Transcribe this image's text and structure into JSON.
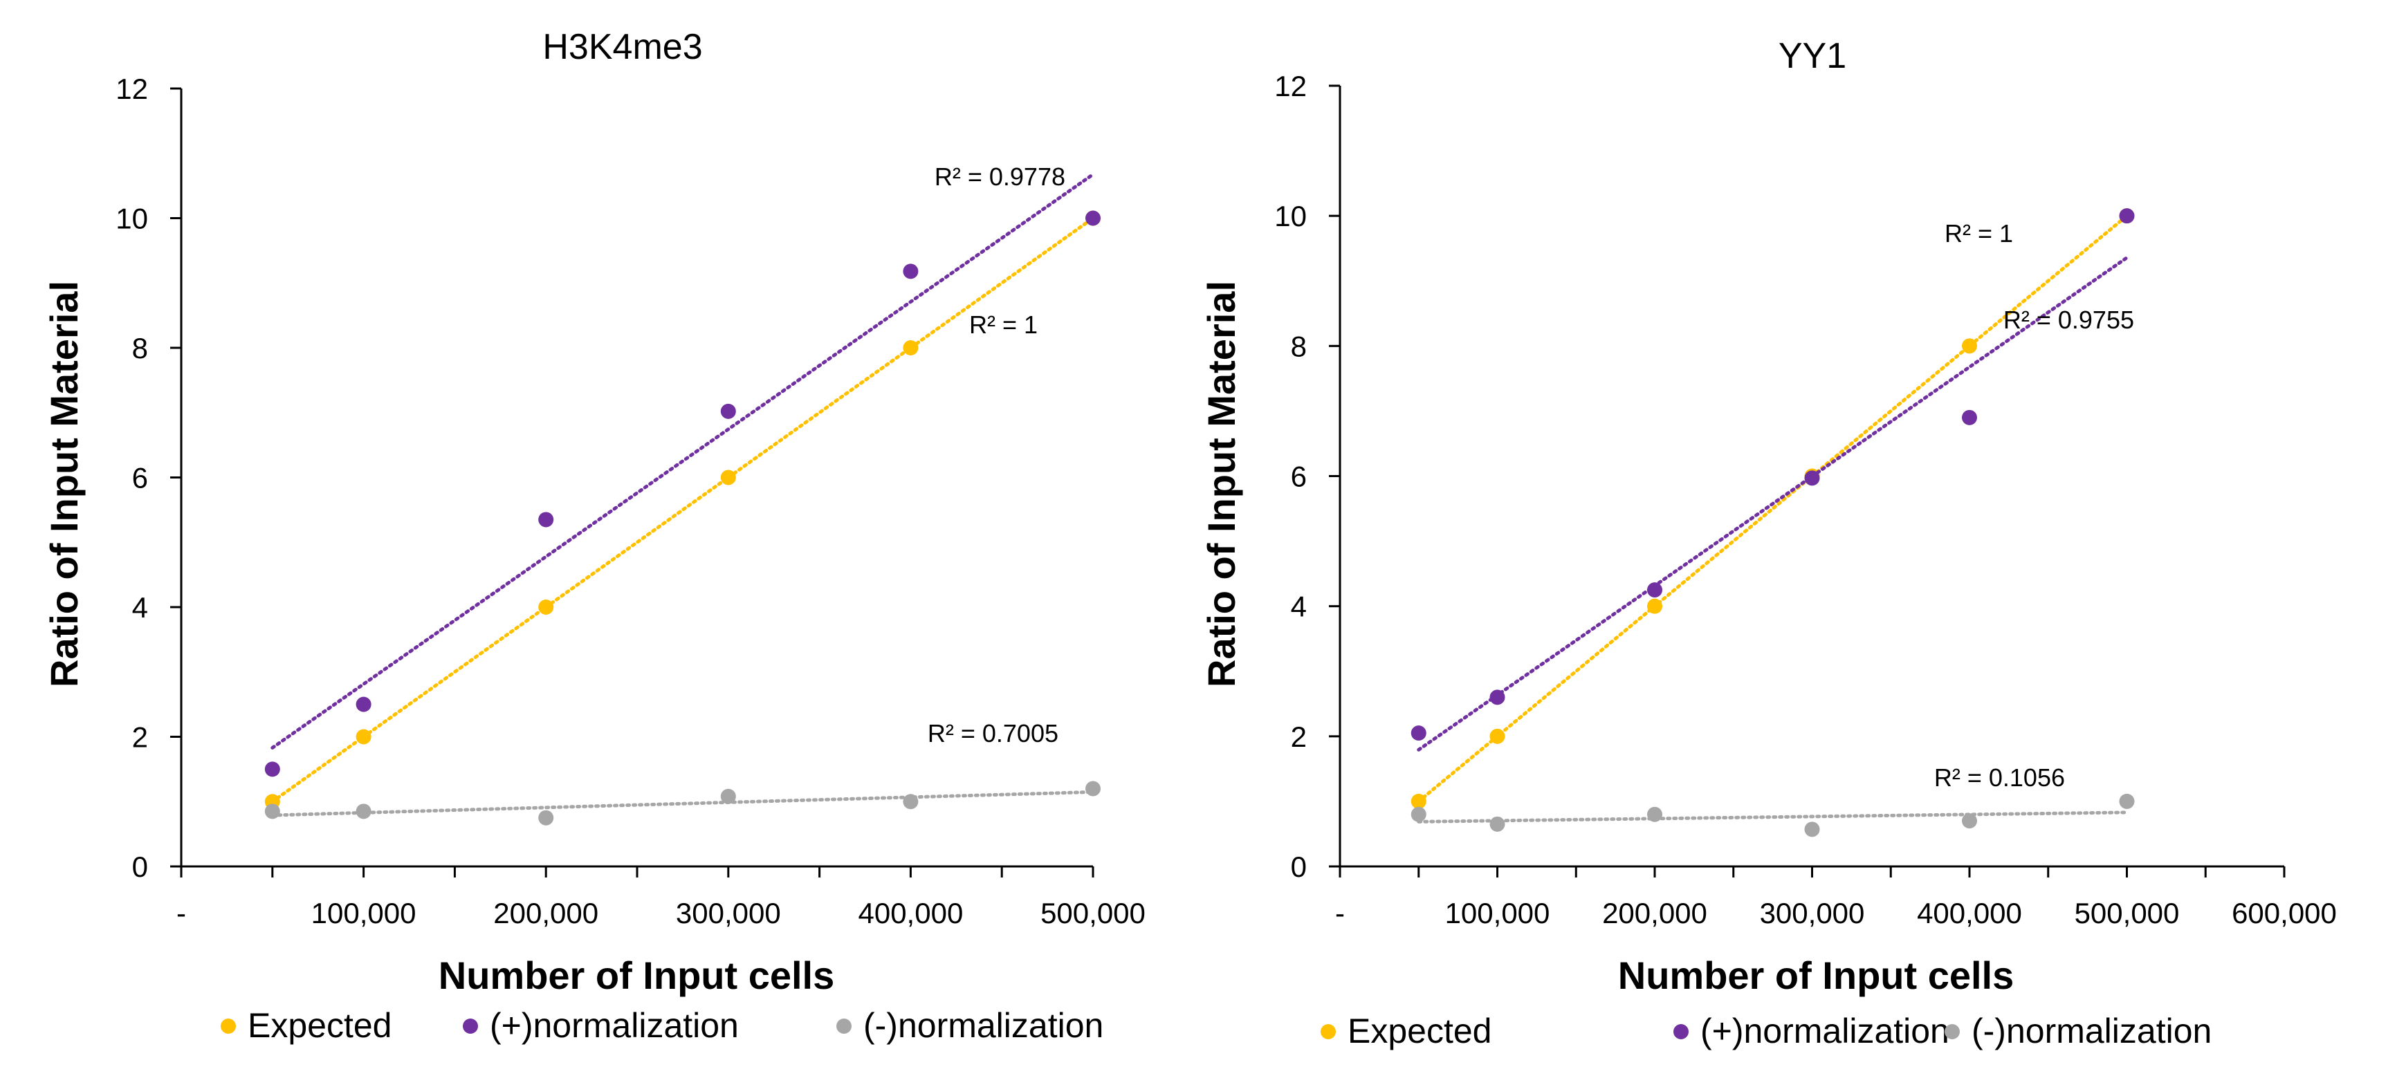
{
  "chart_data": [
    {
      "type": "scatter",
      "title": "H3K4me3",
      "xlabel": "Number of Input cells",
      "ylabel": "Ratio of Input Material",
      "xlim": [
        0,
        500000
      ],
      "ylim": [
        0,
        12
      ],
      "x_ticks": [
        0,
        50000,
        100000,
        150000,
        200000,
        250000,
        300000,
        350000,
        400000,
        450000,
        500000
      ],
      "x_tick_labels": [
        {
          "value": 0,
          "label": "-"
        },
        {
          "value": 100000,
          "label": "100,000"
        },
        {
          "value": 200000,
          "label": "200,000"
        },
        {
          "value": 300000,
          "label": "300,000"
        },
        {
          "value": 400000,
          "label": "400,000"
        },
        {
          "value": 500000,
          "label": "500,000"
        }
      ],
      "y_ticks": [
        0,
        2,
        4,
        6,
        8,
        10,
        12
      ],
      "y_tick_labels": [
        "0",
        "2",
        "4",
        "6",
        "8",
        "10",
        "12"
      ],
      "grid": false,
      "legend": {
        "position": "bottom"
      },
      "series": [
        {
          "name": "Expected",
          "color": "#FFC000",
          "x": [
            50000,
            100000,
            200000,
            300000,
            400000,
            500000
          ],
          "y": [
            1,
            2,
            4,
            6,
            8,
            10
          ],
          "trendline": {
            "type": "linear",
            "r2_label": "R² = 1"
          }
        },
        {
          "name": "(+)normalization",
          "color": "#7030A0",
          "x": [
            50000,
            100000,
            200000,
            300000,
            400000,
            500000
          ],
          "y": [
            1.5,
            2.5,
            5.35,
            7.02,
            9.18,
            10
          ],
          "trendline": {
            "type": "linear",
            "r2_label": "R² = 0.9778"
          }
        },
        {
          "name": "(-)normalization",
          "color": "#A6A6A6",
          "x": [
            50000,
            100000,
            200000,
            300000,
            400000,
            500000
          ],
          "y": [
            0.85,
            0.85,
            0.75,
            1.08,
            1.0,
            1.2
          ],
          "trendline": {
            "type": "linear",
            "r2_label": "R² = 0.7005"
          }
        }
      ]
    },
    {
      "type": "scatter",
      "title": "YY1",
      "xlabel": "Number of Input cells",
      "ylabel": "Ratio of Input Material",
      "xlim": [
        0,
        600000
      ],
      "ylim": [
        0,
        12
      ],
      "x_ticks": [
        0,
        50000,
        100000,
        150000,
        200000,
        250000,
        300000,
        350000,
        400000,
        450000,
        500000,
        550000,
        600000
      ],
      "x_tick_labels": [
        {
          "value": 0,
          "label": "-"
        },
        {
          "value": 100000,
          "label": "100,000"
        },
        {
          "value": 200000,
          "label": "200,000"
        },
        {
          "value": 300000,
          "label": "300,000"
        },
        {
          "value": 400000,
          "label": "400,000"
        },
        {
          "value": 500000,
          "label": "500,000"
        },
        {
          "value": 600000,
          "label": "600,000"
        }
      ],
      "y_ticks": [
        0,
        2,
        4,
        6,
        8,
        10,
        12
      ],
      "y_tick_labels": [
        "0",
        "2",
        "4",
        "6",
        "8",
        "10",
        "12"
      ],
      "grid": false,
      "legend": {
        "position": "bottom"
      },
      "series": [
        {
          "name": "Expected",
          "color": "#FFC000",
          "x": [
            50000,
            100000,
            200000,
            300000,
            400000,
            500000
          ],
          "y": [
            1,
            2,
            4,
            6,
            8,
            10
          ],
          "trendline": {
            "type": "linear",
            "r2_label": "R² = 1"
          }
        },
        {
          "name": "(+)normalization",
          "color": "#7030A0",
          "x": [
            50000,
            100000,
            200000,
            300000,
            400000,
            500000
          ],
          "y": [
            2.05,
            2.6,
            4.25,
            5.97,
            6.9,
            10
          ],
          "trendline": {
            "type": "linear",
            "r2_label": "R² = 0.9755"
          }
        },
        {
          "name": "(-)normalization",
          "color": "#A6A6A6",
          "x": [
            50000,
            100000,
            200000,
            300000,
            400000,
            500000
          ],
          "y": [
            0.8,
            0.65,
            0.8,
            0.57,
            0.7,
            1.0
          ],
          "trendline": {
            "type": "linear",
            "r2_label": "R² = 0.1056"
          }
        }
      ]
    }
  ]
}
